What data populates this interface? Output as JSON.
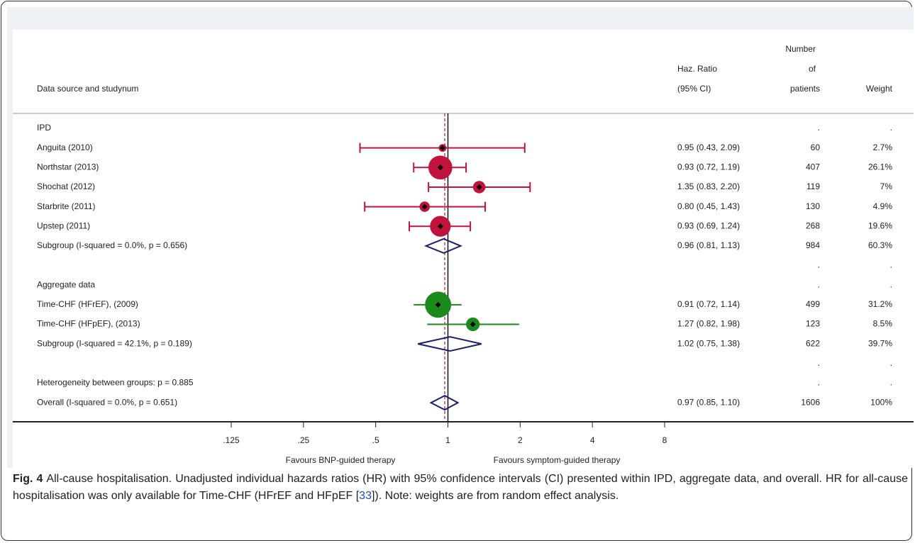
{
  "chart_data": {
    "type": "forest",
    "column_headers": {
      "label": "Data source and studynum",
      "estimate": [
        "Haz. Ratio",
        "(95% CI)"
      ],
      "patients": [
        "Number",
        "of",
        "patients"
      ],
      "weight": "Weight"
    },
    "log_x": true,
    "xlim": [
      0.125,
      8
    ],
    "xticks": [
      {
        "value": 0.125,
        "label": ".125"
      },
      {
        "value": 0.25,
        "label": ".25"
      },
      {
        "value": 0.5,
        "label": ".5"
      },
      1,
      2,
      4,
      8
    ],
    "reference": 1,
    "diamond_color": "#1b1f6e",
    "overall_line_color": "#a0203c",
    "x_labels": [
      "Favours BNP-guided therapy",
      "Favours symptom-guided therapy"
    ],
    "rows": [
      {
        "kind": "heading",
        "label": "IPD",
        "patients": ".",
        "weight": "."
      },
      {
        "kind": "study",
        "label": "Anguita (2010)",
        "hr": 0.95,
        "ci": [
          0.43,
          2.09
        ],
        "text": "0.95 (0.43, 2.09)",
        "patients": 60,
        "weight": 2.7,
        "weight_label": "2.7%",
        "color": "#c0143c",
        "caps": true
      },
      {
        "kind": "study",
        "label": "Northstar (2013)",
        "hr": 0.93,
        "ci": [
          0.72,
          1.19
        ],
        "text": "0.93 (0.72, 1.19)",
        "patients": 407,
        "weight": 26.1,
        "weight_label": "26.1%",
        "color": "#c0143c",
        "caps": true
      },
      {
        "kind": "study",
        "label": "Shochat (2012)",
        "hr": 1.35,
        "ci": [
          0.83,
          2.2
        ],
        "text": "1.35 (0.83, 2.20)",
        "patients": 119,
        "weight": 7,
        "weight_label": "7%",
        "color": "#c0143c",
        "caps": true
      },
      {
        "kind": "study",
        "label": "Starbrite (2011)",
        "hr": 0.8,
        "ci": [
          0.45,
          1.43
        ],
        "text": "0.80 (0.45, 1.43)",
        "patients": 130,
        "weight": 4.9,
        "weight_label": "4.9%",
        "color": "#c0143c",
        "caps": true
      },
      {
        "kind": "study",
        "label": "Upstep (2011)",
        "hr": 0.93,
        "ci": [
          0.69,
          1.24
        ],
        "text": "0.93 (0.69, 1.24)",
        "patients": 268,
        "weight": 19.6,
        "weight_label": "19.6%",
        "color": "#c0143c",
        "caps": true
      },
      {
        "kind": "subgroup",
        "label": "Subgroup (I-squared = 0.0%, p = 0.656)",
        "hr": 0.96,
        "ci": [
          0.81,
          1.13
        ],
        "text": "0.96 (0.81, 1.13)",
        "patients": 984,
        "weight": 60.3,
        "weight_label": "60.3%"
      },
      {
        "kind": "blank",
        "patients": ".",
        "weight": "."
      },
      {
        "kind": "heading",
        "label": "Aggregate data",
        "patients": ".",
        "weight": "."
      },
      {
        "kind": "study",
        "label": "Time-CHF (HFrEF), (2009)",
        "hr": 0.91,
        "ci": [
          0.72,
          1.14
        ],
        "text": "0.91 (0.72, 1.14)",
        "patients": 499,
        "weight": 31.2,
        "weight_label": "31.2%",
        "color": "#1a8a1a",
        "caps": false
      },
      {
        "kind": "study",
        "label": "Time-CHF (HFpEF), (2013)",
        "hr": 1.27,
        "ci": [
          0.82,
          1.98
        ],
        "text": "1.27 (0.82, 1.98)",
        "patients": 123,
        "weight": 8.5,
        "weight_label": "8.5%",
        "color": "#1a8a1a",
        "caps": false
      },
      {
        "kind": "subgroup",
        "label": "Subgroup (I-squared = 42.1%, p = 0.189)",
        "hr": 1.02,
        "ci": [
          0.75,
          1.38
        ],
        "text": "1.02 (0.75, 1.38)",
        "patients": 622,
        "weight": 39.7,
        "weight_label": "39.7%"
      },
      {
        "kind": "blank",
        "patients": ".",
        "weight": "."
      },
      {
        "kind": "heading",
        "label": "Heterogeneity between groups: p = 0.885",
        "patients": ".",
        "weight": "."
      },
      {
        "kind": "overall",
        "label": "Overall (I-squared = 0.0%, p = 0.651)",
        "hr": 0.97,
        "ci": [
          0.85,
          1.1
        ],
        "text": "0.97 (0.85, 1.10)",
        "patients": 1606,
        "weight": 100,
        "weight_label": "100%"
      }
    ]
  },
  "caption": {
    "label": "Fig. 4",
    "text": "All-cause hospitalisation. Unadjusted individual hazards ratios (HR) with 95% confidence intervals (CI) presented within IPD, aggregate data, and overall. HR for all-cause hospitalisation was only available for Time-CHF (HFrEF and HFpEF [",
    "ref": "33",
    "text_end": "]). Note: weights are from random effect analysis."
  }
}
